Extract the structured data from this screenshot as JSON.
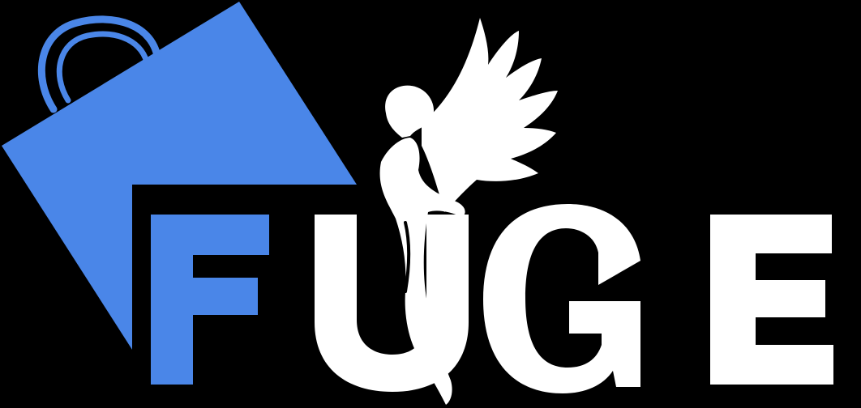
{
  "brand": {
    "name": "FUGE",
    "letters": [
      "F",
      "U",
      "G",
      "E"
    ]
  },
  "colors": {
    "background": "#000000",
    "bag_blue": "#4A86E8",
    "letter_blue": "#4A86E8",
    "letter_white": "#FFFFFF",
    "figure_white": "#FFFFFF"
  },
  "icons": {
    "bag": "shopping-bag-icon",
    "figure": "winged-figure-icon"
  }
}
